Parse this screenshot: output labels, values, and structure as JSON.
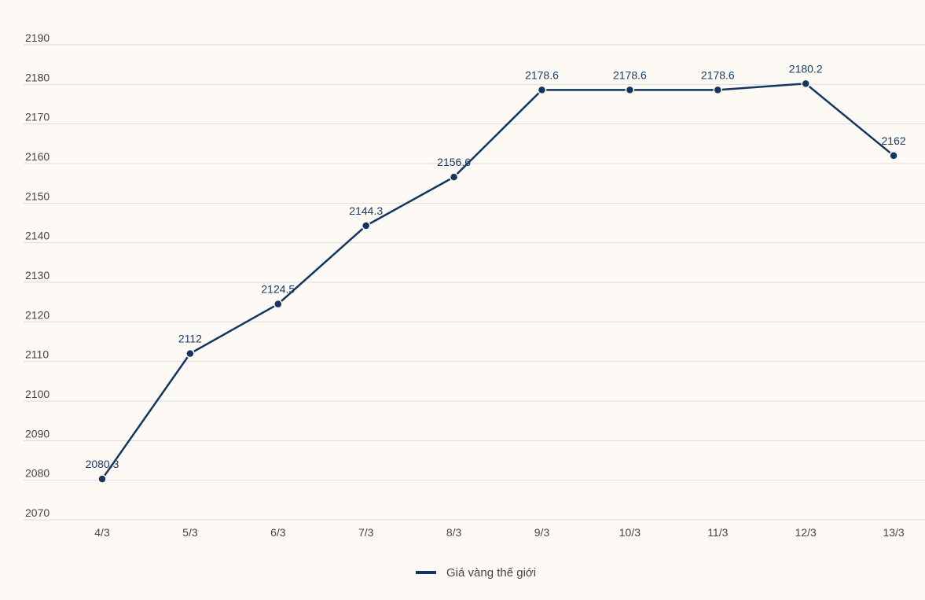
{
  "chart_data": {
    "type": "line",
    "title": "",
    "xlabel": "",
    "ylabel": "",
    "categories": [
      "4/3",
      "5/3",
      "6/3",
      "7/3",
      "8/3",
      "9/3",
      "10/3",
      "11/3",
      "12/3",
      "13/3"
    ],
    "series": [
      {
        "name": "Giá vàng thế giới",
        "values": [
          2080.3,
          2112,
          2124.5,
          2144.3,
          2156.6,
          2178.6,
          2178.6,
          2178.6,
          2180.2,
          2162
        ],
        "data_labels": [
          "2080.3",
          "2112",
          "2124.5",
          "2144.3",
          "2156.6",
          "2178.6",
          "2178.6",
          "2178.6",
          "2180.2",
          "2162"
        ],
        "color": "#14355f"
      }
    ],
    "ylim": [
      2070,
      2190
    ],
    "yticks": [
      "2070",
      "2080",
      "2090",
      "2100",
      "2110",
      "2120",
      "2130",
      "2140",
      "2150",
      "2160",
      "2170",
      "2180",
      "2190"
    ],
    "grid": true,
    "legend_position": "bottom"
  },
  "colors": {
    "background": "#fdf9f5",
    "grid": "#dddddd",
    "line": "#14355f",
    "data_label": "#1b3a66",
    "axis_text": "#444444"
  }
}
